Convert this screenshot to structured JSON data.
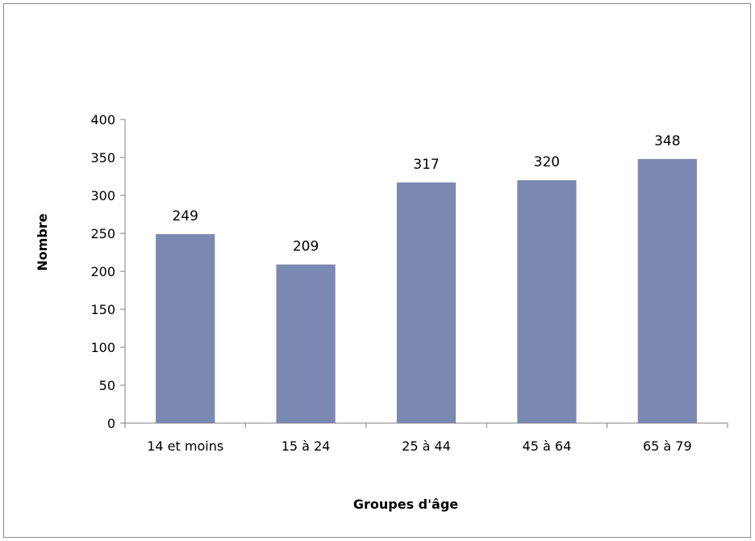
{
  "chart_data": {
    "type": "bar",
    "title": "",
    "xlabel": "Groupes d'âge",
    "ylabel": "Nombre",
    "categories": [
      "14 et moins",
      "15 à 24",
      "25 à 44",
      "45 à 64",
      "65 à 79"
    ],
    "values": [
      249,
      209,
      317,
      320,
      348
    ],
    "data_labels": [
      "249",
      "209",
      "317",
      "320",
      "348"
    ],
    "yticks": [
      "0",
      "50",
      "100",
      "150",
      "200",
      "250",
      "300",
      "350",
      "400"
    ],
    "ylim": [
      0,
      400
    ],
    "grid": false,
    "legend": "none",
    "bar_color": "#7b88b1"
  }
}
